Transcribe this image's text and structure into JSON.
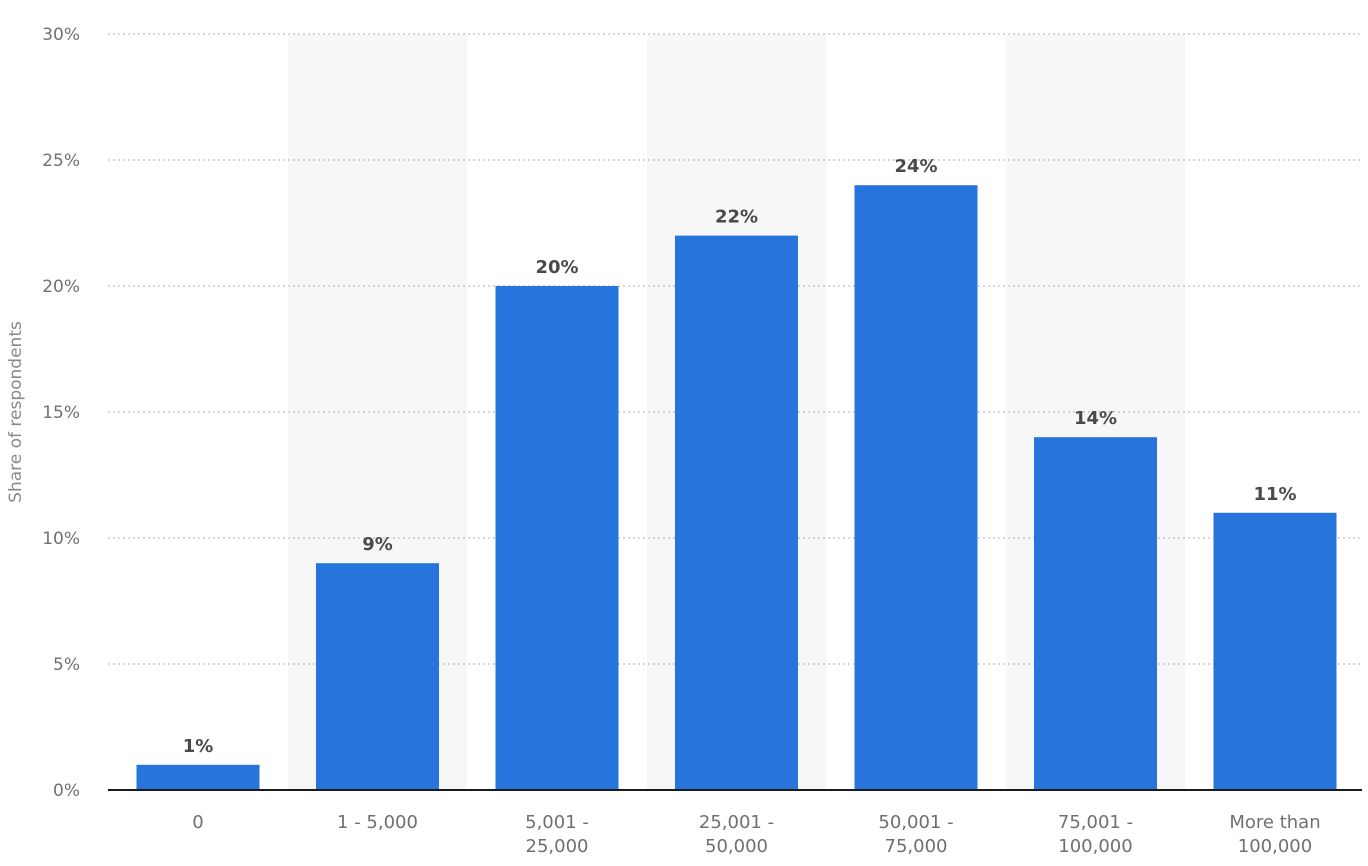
{
  "chart_data": {
    "type": "bar",
    "categories": [
      [
        "0"
      ],
      [
        "1 - 5,000"
      ],
      [
        "5,001 -",
        "25,000"
      ],
      [
        "25,001 -",
        "50,000"
      ],
      [
        "50,001 -",
        "75,000"
      ],
      [
        "75,001 -",
        "100,000"
      ],
      [
        "More than",
        "100,000"
      ]
    ],
    "values": [
      1,
      9,
      20,
      22,
      24,
      14,
      11
    ],
    "value_labels": [
      "1%",
      "9%",
      "20%",
      "22%",
      "24%",
      "14%",
      "11%"
    ],
    "ylabel": "Share of respondents",
    "xlabel": "",
    "ylim": [
      0,
      30
    ],
    "yticks": [
      0,
      5,
      10,
      15,
      20,
      25,
      30
    ],
    "ytick_labels": [
      "0%",
      "5%",
      "10%",
      "15%",
      "20%",
      "25%",
      "30%"
    ],
    "grid": "horizontal dotted",
    "alternating_column_shading": true,
    "colors": {
      "bar": "#2775dc",
      "grid": "#bdbdbd",
      "axis": "#1a1a1a",
      "band": "#f7f7f7"
    }
  }
}
